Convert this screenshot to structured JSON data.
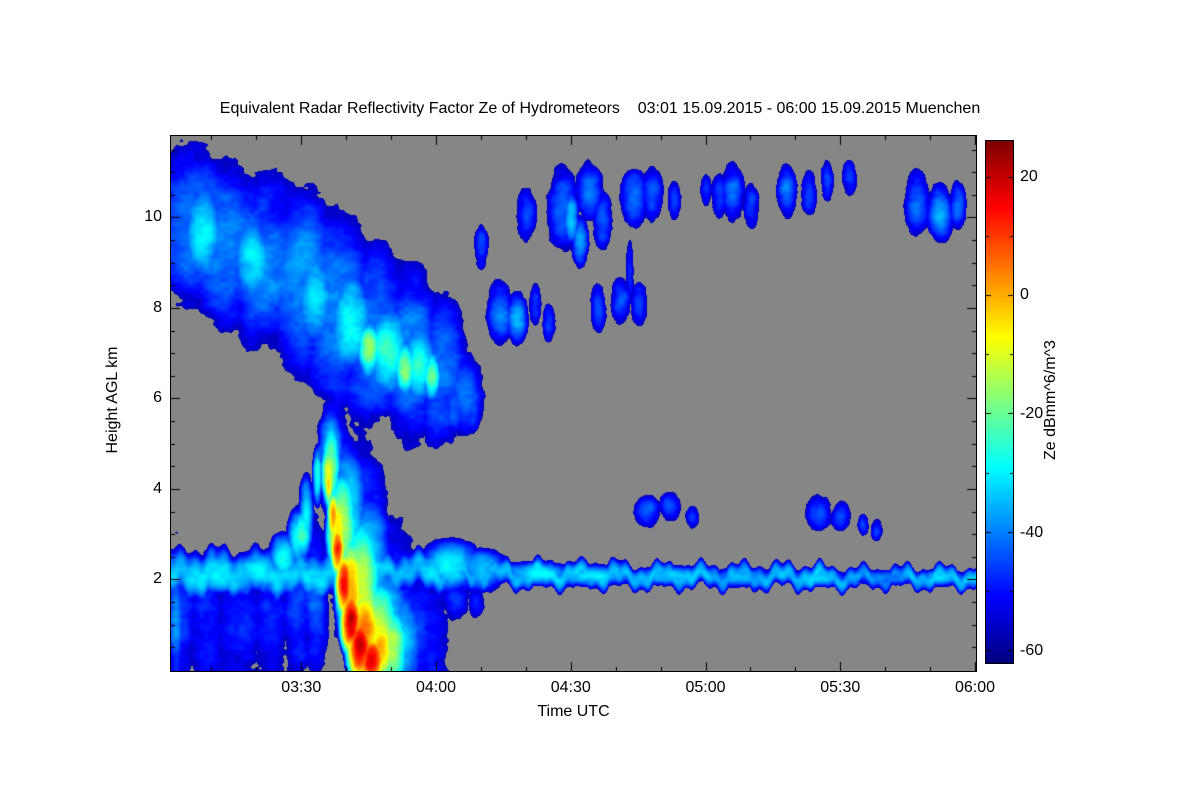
{
  "chart_data": {
    "type": "heatmap",
    "title": "Equivalent Radar Reflectivity Factor Ze of Hydrometeors    03:01 15.09.2015 - 06:00 15.09.2015 Muenchen",
    "x_axis": {
      "label": "Time UTC",
      "range_minutes": [
        1,
        180
      ],
      "tick_minutes": [
        30,
        60,
        90,
        120,
        150,
        180
      ],
      "tick_labels": [
        "03:30",
        "04:00",
        "04:30",
        "05:00",
        "05:30",
        "06:00"
      ],
      "minor_step_minutes": 10
    },
    "y_axis": {
      "label": "Height AGL km",
      "range_km": [
        0,
        11.8
      ],
      "tick_values": [
        2,
        4,
        6,
        8,
        10
      ],
      "tick_labels": [
        "2",
        "4",
        "6",
        "8",
        "10"
      ],
      "minor_step_km": 0.5
    },
    "colorbar": {
      "label": "Ze dBmm^6/m^3",
      "colormap": "jet",
      "range": [
        -62,
        26
      ],
      "tick_values": [
        20,
        0,
        -20,
        -40,
        -60
      ],
      "tick_labels": [
        "20",
        "0",
        "-20",
        "-40",
        "-60"
      ],
      "minor_tick_values": [
        10,
        -10,
        -30,
        -50
      ]
    },
    "background_color": "#868686",
    "display_threshold_db": -57,
    "noise": {
      "seed": 7,
      "octaves": [
        [
          34,
          26,
          3.2
        ],
        [
          13,
          10,
          2.2
        ],
        [
          5,
          4,
          1.6
        ]
      ]
    },
    "blob_format": [
      "t_min_after_0300",
      "height_km",
      "radius_t_min",
      "radius_h_km",
      "peak_dBZe"
    ],
    "cloud_blobs": [
      [
        5,
        9.8,
        7,
        1.5,
        -42
      ],
      [
        13,
        9.4,
        7,
        1.5,
        -40
      ],
      [
        22,
        9.0,
        7,
        1.6,
        -40
      ],
      [
        30,
        8.6,
        7,
        1.7,
        -39
      ],
      [
        38,
        8.0,
        7,
        1.8,
        -38
      ],
      [
        46,
        7.4,
        7,
        1.7,
        -38
      ],
      [
        54,
        7.0,
        6,
        1.6,
        -39
      ],
      [
        61,
        6.6,
        5,
        1.4,
        -41
      ],
      [
        66,
        6.1,
        3.5,
        0.8,
        -43
      ],
      [
        64,
        5.8,
        2,
        0.5,
        -42
      ],
      [
        68,
        5.7,
        1.5,
        0.4,
        -46
      ],
      [
        3,
        10.7,
        3,
        0.7,
        -47
      ],
      [
        10,
        10.4,
        4,
        0.7,
        -47
      ],
      [
        18,
        10.1,
        4,
        0.7,
        -47
      ],
      [
        8,
        9.7,
        4,
        0.9,
        -30
      ],
      [
        19,
        9.1,
        4,
        0.8,
        -30
      ],
      [
        33,
        8.2,
        4,
        0.9,
        -30
      ],
      [
        41,
        7.7,
        4.5,
        1.0,
        -26
      ],
      [
        49,
        7.1,
        4.5,
        0.9,
        -24
      ],
      [
        56,
        6.8,
        3.5,
        0.8,
        -26
      ],
      [
        45,
        7.1,
        2.5,
        0.6,
        -17
      ],
      [
        53,
        6.7,
        2.2,
        0.55,
        -18
      ],
      [
        59,
        6.5,
        1.8,
        0.5,
        -20
      ],
      [
        70,
        9.4,
        1.2,
        0.4,
        -47
      ],
      [
        74,
        7.9,
        2.5,
        0.6,
        -41
      ],
      [
        78,
        7.8,
        2,
        0.5,
        -38
      ],
      [
        82,
        8.1,
        1.2,
        0.4,
        -45
      ],
      [
        85,
        7.7,
        1.2,
        0.35,
        -46
      ],
      [
        80,
        10.1,
        2,
        0.5,
        -44
      ],
      [
        88,
        10.2,
        3,
        0.8,
        -41
      ],
      [
        90,
        10.0,
        1.5,
        0.5,
        -31
      ],
      [
        94,
        10.6,
        2.5,
        0.6,
        -42
      ],
      [
        92,
        9.5,
        1.6,
        0.5,
        -38
      ],
      [
        97,
        9.9,
        1.8,
        0.55,
        -43
      ],
      [
        96,
        8.0,
        1.5,
        0.45,
        -44
      ],
      [
        101,
        8.2,
        2,
        0.45,
        -42
      ],
      [
        105,
        8.1,
        1.6,
        0.4,
        -45
      ],
      [
        103,
        8.8,
        0.8,
        0.6,
        -45
      ],
      [
        104,
        10.5,
        2.5,
        0.55,
        -42
      ],
      [
        108,
        10.6,
        2,
        0.5,
        -44
      ],
      [
        113,
        10.4,
        1.2,
        0.35,
        -46
      ],
      [
        120,
        10.6,
        1.1,
        0.3,
        -47
      ],
      [
        123,
        10.5,
        1.5,
        0.4,
        -45
      ],
      [
        126,
        10.6,
        2.2,
        0.55,
        -42
      ],
      [
        130,
        10.3,
        1.5,
        0.4,
        -45
      ],
      [
        138,
        10.6,
        1.8,
        0.5,
        -43
      ],
      [
        143,
        10.5,
        1.5,
        0.4,
        -44
      ],
      [
        147,
        10.8,
        1.2,
        0.35,
        -45
      ],
      [
        152,
        10.9,
        1.4,
        0.35,
        -45
      ],
      [
        167,
        10.3,
        2.5,
        0.6,
        -40
      ],
      [
        172,
        10.1,
        2.5,
        0.55,
        -38
      ],
      [
        176,
        10.3,
        1.6,
        0.45,
        -43
      ],
      [
        107,
        3.5,
        2.5,
        0.3,
        -44
      ],
      [
        112,
        3.6,
        2,
        0.28,
        -45
      ],
      [
        117,
        3.4,
        1.4,
        0.22,
        -46
      ],
      [
        145,
        3.5,
        2.5,
        0.35,
        -43
      ],
      [
        150,
        3.4,
        1.8,
        0.28,
        -45
      ],
      [
        155,
        3.2,
        1,
        0.2,
        -47
      ],
      [
        158,
        3.1,
        1.1,
        0.2,
        -47
      ],
      [
        2,
        1.0,
        1.5,
        1.2,
        -40
      ],
      [
        3,
        1.2,
        3,
        1.4,
        -47
      ],
      [
        9,
        1.0,
        4,
        1.3,
        -48
      ],
      [
        16,
        1.1,
        5,
        1.3,
        -47
      ],
      [
        23,
        1.0,
        4,
        1.2,
        -48
      ],
      [
        29,
        1.2,
        3,
        1.3,
        -46
      ],
      [
        33,
        1.6,
        2.5,
        1.6,
        -44
      ],
      [
        12,
        2.1,
        5,
        0.35,
        -30
      ],
      [
        20,
        2.2,
        5,
        0.38,
        -28
      ],
      [
        26,
        2.5,
        3,
        0.45,
        -25
      ],
      [
        30,
        3.0,
        2,
        0.5,
        -21
      ],
      [
        29,
        2.9,
        2,
        0.6,
        -26
      ],
      [
        31,
        3.4,
        1.5,
        0.8,
        -28
      ],
      [
        33.5,
        4.3,
        1.0,
        0.6,
        -25
      ],
      [
        34,
        4.7,
        0.7,
        0.35,
        -38
      ],
      [
        36,
        4.1,
        1.0,
        0.5,
        -2
      ],
      [
        37,
        3.4,
        1.3,
        0.55,
        6
      ],
      [
        38,
        2.7,
        1.6,
        0.6,
        12
      ],
      [
        39.5,
        1.9,
        2.0,
        0.7,
        17
      ],
      [
        41,
        1.1,
        2.4,
        0.75,
        20
      ],
      [
        43,
        0.5,
        3.0,
        0.7,
        21
      ],
      [
        45.5,
        0.25,
        3.2,
        0.5,
        20
      ],
      [
        36,
        4.35,
        1.6,
        0.7,
        -8
      ],
      [
        38,
        3.1,
        2.4,
        0.9,
        -2
      ],
      [
        41,
        1.8,
        3.2,
        1.1,
        2
      ],
      [
        44,
        0.9,
        4.0,
        1.0,
        4
      ],
      [
        47.5,
        0.45,
        3.2,
        0.7,
        0
      ],
      [
        36.5,
        4.5,
        2.0,
        0.9,
        -16
      ],
      [
        39,
        3.2,
        3.2,
        1.2,
        -12
      ],
      [
        43,
        1.8,
        4.5,
        1.4,
        -9
      ],
      [
        47,
        0.9,
        4.5,
        1.1,
        -10
      ],
      [
        50,
        0.5,
        3.5,
        0.9,
        -14
      ],
      [
        36.5,
        4.6,
        2.6,
        1.1,
        -30
      ],
      [
        40,
        3.4,
        4.2,
        1.5,
        -28
      ],
      [
        44,
        2.0,
        5.5,
        1.7,
        -27
      ],
      [
        48,
        1.0,
        5.2,
        1.4,
        -28
      ],
      [
        52,
        0.6,
        4.2,
        1.1,
        -32
      ],
      [
        37,
        4.6,
        3.2,
        1.3,
        -44
      ],
      [
        42,
        3.0,
        6,
        2.0,
        -43
      ],
      [
        49,
        1.4,
        7,
        1.7,
        -44
      ],
      [
        55,
        0.8,
        5,
        1.3,
        -46
      ],
      [
        59,
        0.6,
        3.5,
        1.1,
        -48
      ],
      [
        63,
        2.3,
        6,
        0.5,
        -31
      ],
      [
        70,
        2.2,
        5,
        0.4,
        -33
      ],
      [
        64,
        1.6,
        2.5,
        0.45,
        -48
      ],
      [
        69,
        1.5,
        1.5,
        0.3,
        -50
      ],
      [
        82,
        2.15,
        7,
        0.22,
        -31
      ],
      [
        95,
        2.1,
        8,
        0.2,
        -31
      ],
      [
        112,
        2.1,
        7,
        0.18,
        -32
      ],
      [
        128,
        2.05,
        7,
        0.18,
        -33
      ],
      [
        145,
        2.05,
        6,
        0.16,
        -34
      ],
      [
        160,
        2.05,
        6,
        0.15,
        -35
      ],
      [
        172,
        2.05,
        5,
        0.15,
        -36
      ]
    ],
    "band_format": [
      "t_start_min",
      "t_end_min",
      "center_height_km",
      "half_thickness_km",
      "peak_dBZe"
    ],
    "layer_bands": [
      [
        1,
        38,
        2.15,
        0.55,
        -33
      ],
      [
        38,
        60,
        2.2,
        0.45,
        -32
      ],
      [
        58,
        100,
        2.12,
        0.3,
        -34
      ],
      [
        100,
        145,
        2.08,
        0.27,
        -34
      ],
      [
        145,
        180,
        2.05,
        0.24,
        -36
      ]
    ]
  }
}
